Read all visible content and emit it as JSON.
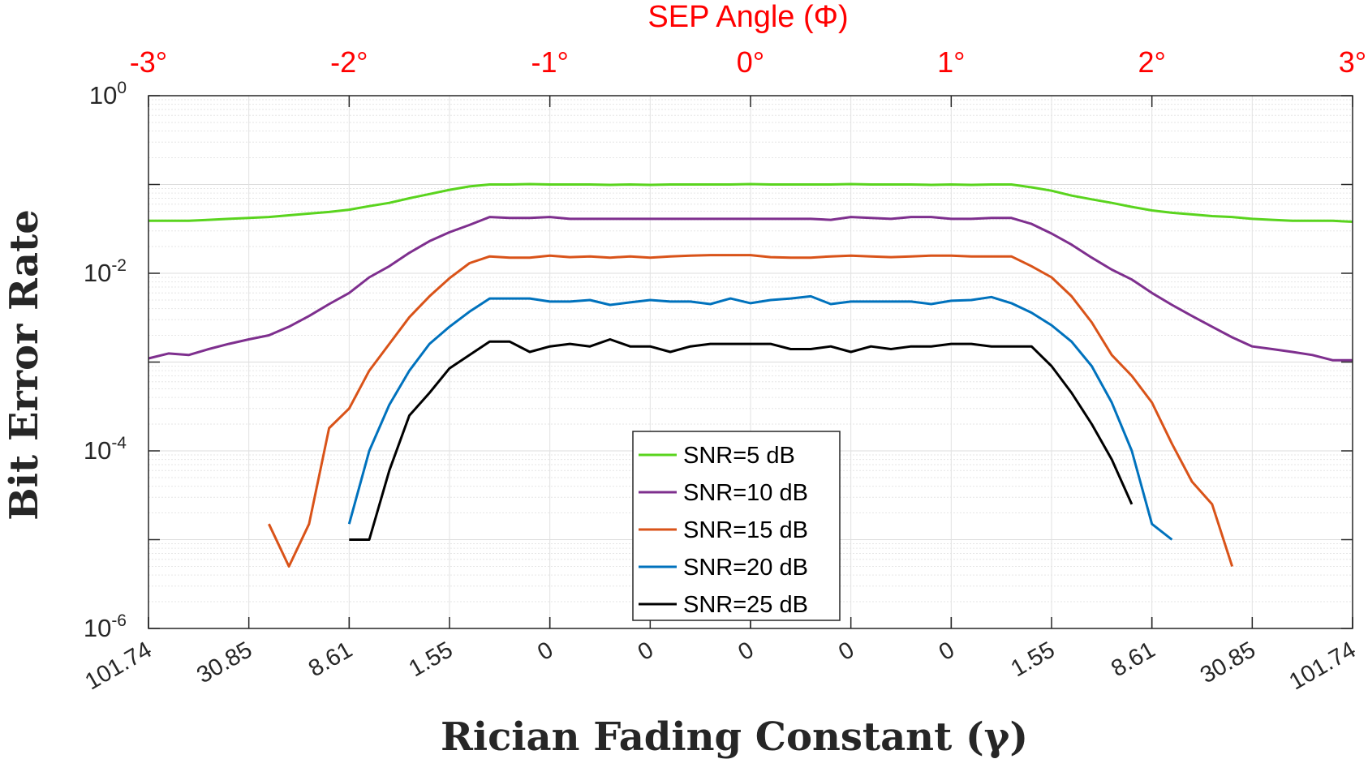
{
  "chart_data": {
    "type": "line",
    "title": "SEP Angle (Φ)",
    "xlabel": "Rician Fading Constant (γ)",
    "ylabel": "Bit Error Rate",
    "yscale": "log",
    "ylim": [
      1e-06,
      1
    ],
    "xlim": [
      -3,
      3
    ],
    "grid": true,
    "legend_position": "bottom-center",
    "top_axis": {
      "label": "SEP Angle (Φ)",
      "ticks": [
        -3,
        -2,
        -1,
        0,
        1,
        2,
        3
      ],
      "tick_labels": [
        "-3°",
        "-2°",
        "-1°",
        "0°",
        "1°",
        "2°",
        "3°"
      ],
      "color": "#ff0000"
    },
    "bottom_axis": {
      "label": "Rician Fading Constant (γ)",
      "ticks": [
        -3,
        -2.5,
        -2,
        -1.5,
        -1,
        -0.5,
        0,
        0.5,
        1,
        1.5,
        2,
        2.5,
        3
      ],
      "tick_labels": [
        "101.74",
        "30.85",
        "8.61",
        "1.55",
        "0",
        "0",
        "0",
        "0",
        "0",
        "1.55",
        "8.61",
        "30.85",
        "101.74"
      ]
    },
    "left_axis": {
      "ticks": [
        0,
        -2,
        -4,
        -6
      ],
      "tick_base": "10",
      "tick_exponents": [
        "0",
        "-2",
        "-4",
        "-6"
      ]
    },
    "series": [
      {
        "name": "SNR=5 dB",
        "color": "#5ad41e",
        "x": [
          -3,
          -2.9,
          -2.8,
          -2.7,
          -2.6,
          -2.5,
          -2.4,
          -2.3,
          -2.2,
          -2.1,
          -2,
          -1.9,
          -1.8,
          -1.7,
          -1.6,
          -1.5,
          -1.4,
          -1.3,
          -1.2,
          -1.1,
          -1,
          -0.9,
          -0.8,
          -0.7,
          -0.6,
          -0.5,
          -0.4,
          -0.3,
          -0.2,
          -0.1,
          0,
          0.1,
          0.2,
          0.3,
          0.4,
          0.5,
          0.6,
          0.7,
          0.8,
          0.9,
          1,
          1.1,
          1.2,
          1.3,
          1.4,
          1.5,
          1.6,
          1.7,
          1.8,
          1.9,
          2,
          2.1,
          2.2,
          2.3,
          2.4,
          2.5,
          2.6,
          2.7,
          2.8,
          2.9,
          3
        ],
        "y": [
          0.039,
          0.039,
          0.039,
          0.04,
          0.041,
          0.042,
          0.043,
          0.045,
          0.047,
          0.049,
          0.052,
          0.057,
          0.062,
          0.07,
          0.078,
          0.087,
          0.095,
          0.1,
          0.1,
          0.101,
          0.1,
          0.1,
          0.1,
          0.099,
          0.1,
          0.099,
          0.1,
          0.1,
          0.1,
          0.1,
          0.101,
          0.1,
          0.1,
          0.1,
          0.1,
          0.101,
          0.1,
          0.1,
          0.1,
          0.099,
          0.1,
          0.099,
          0.1,
          0.1,
          0.093,
          0.085,
          0.075,
          0.068,
          0.062,
          0.056,
          0.051,
          0.048,
          0.046,
          0.044,
          0.043,
          0.041,
          0.04,
          0.039,
          0.039,
          0.039,
          0.038
        ]
      },
      {
        "name": "SNR=10 dB",
        "color": "#7e2f8e",
        "x": [
          -3,
          -2.9,
          -2.8,
          -2.7,
          -2.6,
          -2.5,
          -2.4,
          -2.3,
          -2.2,
          -2.1,
          -2,
          -1.9,
          -1.8,
          -1.7,
          -1.6,
          -1.5,
          -1.4,
          -1.3,
          -1.2,
          -1.1,
          -1,
          -0.9,
          -0.8,
          -0.7,
          -0.6,
          -0.5,
          -0.4,
          -0.3,
          -0.2,
          -0.1,
          0,
          0.1,
          0.2,
          0.3,
          0.4,
          0.5,
          0.6,
          0.7,
          0.8,
          0.9,
          1,
          1.1,
          1.2,
          1.3,
          1.4,
          1.5,
          1.6,
          1.7,
          1.8,
          1.9,
          2,
          2.1,
          2.2,
          2.3,
          2.4,
          2.5,
          2.6,
          2.7,
          2.8,
          2.9,
          3
        ],
        "y": [
          0.0011,
          0.00125,
          0.0012,
          0.0014,
          0.0016,
          0.0018,
          0.002,
          0.0025,
          0.0033,
          0.0045,
          0.006,
          0.009,
          0.012,
          0.017,
          0.023,
          0.029,
          0.035,
          0.043,
          0.042,
          0.042,
          0.043,
          0.041,
          0.041,
          0.041,
          0.041,
          0.041,
          0.041,
          0.041,
          0.041,
          0.041,
          0.041,
          0.041,
          0.041,
          0.041,
          0.04,
          0.043,
          0.042,
          0.041,
          0.043,
          0.043,
          0.041,
          0.041,
          0.042,
          0.042,
          0.036,
          0.028,
          0.021,
          0.015,
          0.011,
          0.0085,
          0.006,
          0.0044,
          0.0033,
          0.0025,
          0.0019,
          0.0015,
          0.0014,
          0.0013,
          0.0012,
          0.00105,
          0.00105
        ]
      },
      {
        "name": "SNR=15 dB",
        "color": "#d95319",
        "x": [
          -2.4,
          -2.3,
          -2.2,
          -2.1,
          -2,
          -1.9,
          -1.8,
          -1.7,
          -1.6,
          -1.5,
          -1.4,
          -1.3,
          -1.2,
          -1.1,
          -1,
          -0.9,
          -0.8,
          -0.7,
          -0.6,
          -0.5,
          -0.4,
          -0.3,
          -0.2,
          -0.1,
          0,
          0.1,
          0.2,
          0.3,
          0.4,
          0.5,
          0.6,
          0.7,
          0.8,
          0.9,
          1,
          1.1,
          1.2,
          1.3,
          1.4,
          1.5,
          1.6,
          1.7,
          1.8,
          1.9,
          2,
          2.1,
          2.2,
          2.3,
          2.4
        ],
        "y": [
          1.5e-05,
          5e-06,
          1.5e-05,
          0.00018,
          0.0003,
          0.0008,
          0.0016,
          0.0032,
          0.0055,
          0.0088,
          0.013,
          0.0155,
          0.015,
          0.015,
          0.0158,
          0.0152,
          0.0155,
          0.015,
          0.0155,
          0.015,
          0.0155,
          0.0158,
          0.016,
          0.016,
          0.016,
          0.0152,
          0.015,
          0.015,
          0.0155,
          0.0158,
          0.0155,
          0.0152,
          0.0155,
          0.0158,
          0.0158,
          0.0155,
          0.0155,
          0.0155,
          0.012,
          0.009,
          0.0055,
          0.0028,
          0.0012,
          0.0007,
          0.00035,
          0.00012,
          4.5e-05,
          2.5e-05,
          5e-06
        ]
      },
      {
        "name": "SNR=20 dB",
        "color": "#0072bd",
        "x": [
          -2,
          -1.9,
          -1.8,
          -1.7,
          -1.6,
          -1.5,
          -1.4,
          -1.3,
          -1.2,
          -1.1,
          -1,
          -0.9,
          -0.8,
          -0.7,
          -0.6,
          -0.5,
          -0.4,
          -0.3,
          -0.2,
          -0.1,
          0,
          0.1,
          0.2,
          0.3,
          0.4,
          0.5,
          0.6,
          0.7,
          0.8,
          0.9,
          1,
          1.1,
          1.2,
          1.3,
          1.4,
          1.5,
          1.6,
          1.7,
          1.8,
          1.9,
          2,
          2.1
        ],
        "y": [
          1.5e-05,
          0.0001,
          0.00033,
          0.0008,
          0.0016,
          0.0025,
          0.0037,
          0.0052,
          0.0052,
          0.0052,
          0.0048,
          0.0048,
          0.005,
          0.0044,
          0.0047,
          0.005,
          0.0048,
          0.0048,
          0.0045,
          0.0052,
          0.0046,
          0.005,
          0.0052,
          0.0055,
          0.0045,
          0.0048,
          0.0048,
          0.0048,
          0.0048,
          0.0045,
          0.0049,
          0.005,
          0.0054,
          0.0046,
          0.0036,
          0.0026,
          0.0017,
          0.0009,
          0.00035,
          0.0001,
          1.5e-05,
          1e-05
        ]
      },
      {
        "name": "SNR=25 dB",
        "color": "#000000",
        "x": [
          -2,
          -1.9,
          -1.8,
          -1.7,
          -1.6,
          -1.5,
          -1.4,
          -1.3,
          -1.2,
          -1.1,
          -1,
          -0.9,
          -0.8,
          -0.7,
          -0.6,
          -0.5,
          -0.4,
          -0.3,
          -0.2,
          -0.1,
          0,
          0.1,
          0.2,
          0.3,
          0.4,
          0.5,
          0.6,
          0.7,
          0.8,
          0.9,
          1,
          1.1,
          1.2,
          1.3,
          1.4,
          1.5,
          1.6,
          1.7,
          1.8,
          1.9
        ],
        "y": [
          1e-05,
          1e-05,
          6e-05,
          0.00025,
          0.00045,
          0.00085,
          0.0012,
          0.0017,
          0.0017,
          0.0013,
          0.0015,
          0.0016,
          0.0015,
          0.0018,
          0.0015,
          0.0015,
          0.0013,
          0.0015,
          0.0016,
          0.0016,
          0.0016,
          0.0016,
          0.0014,
          0.0014,
          0.0015,
          0.0013,
          0.0015,
          0.0014,
          0.0015,
          0.0015,
          0.0016,
          0.0016,
          0.0015,
          0.0015,
          0.0015,
          0.0009,
          0.00045,
          0.0002,
          8e-05,
          2.5e-05
        ]
      }
    ]
  }
}
